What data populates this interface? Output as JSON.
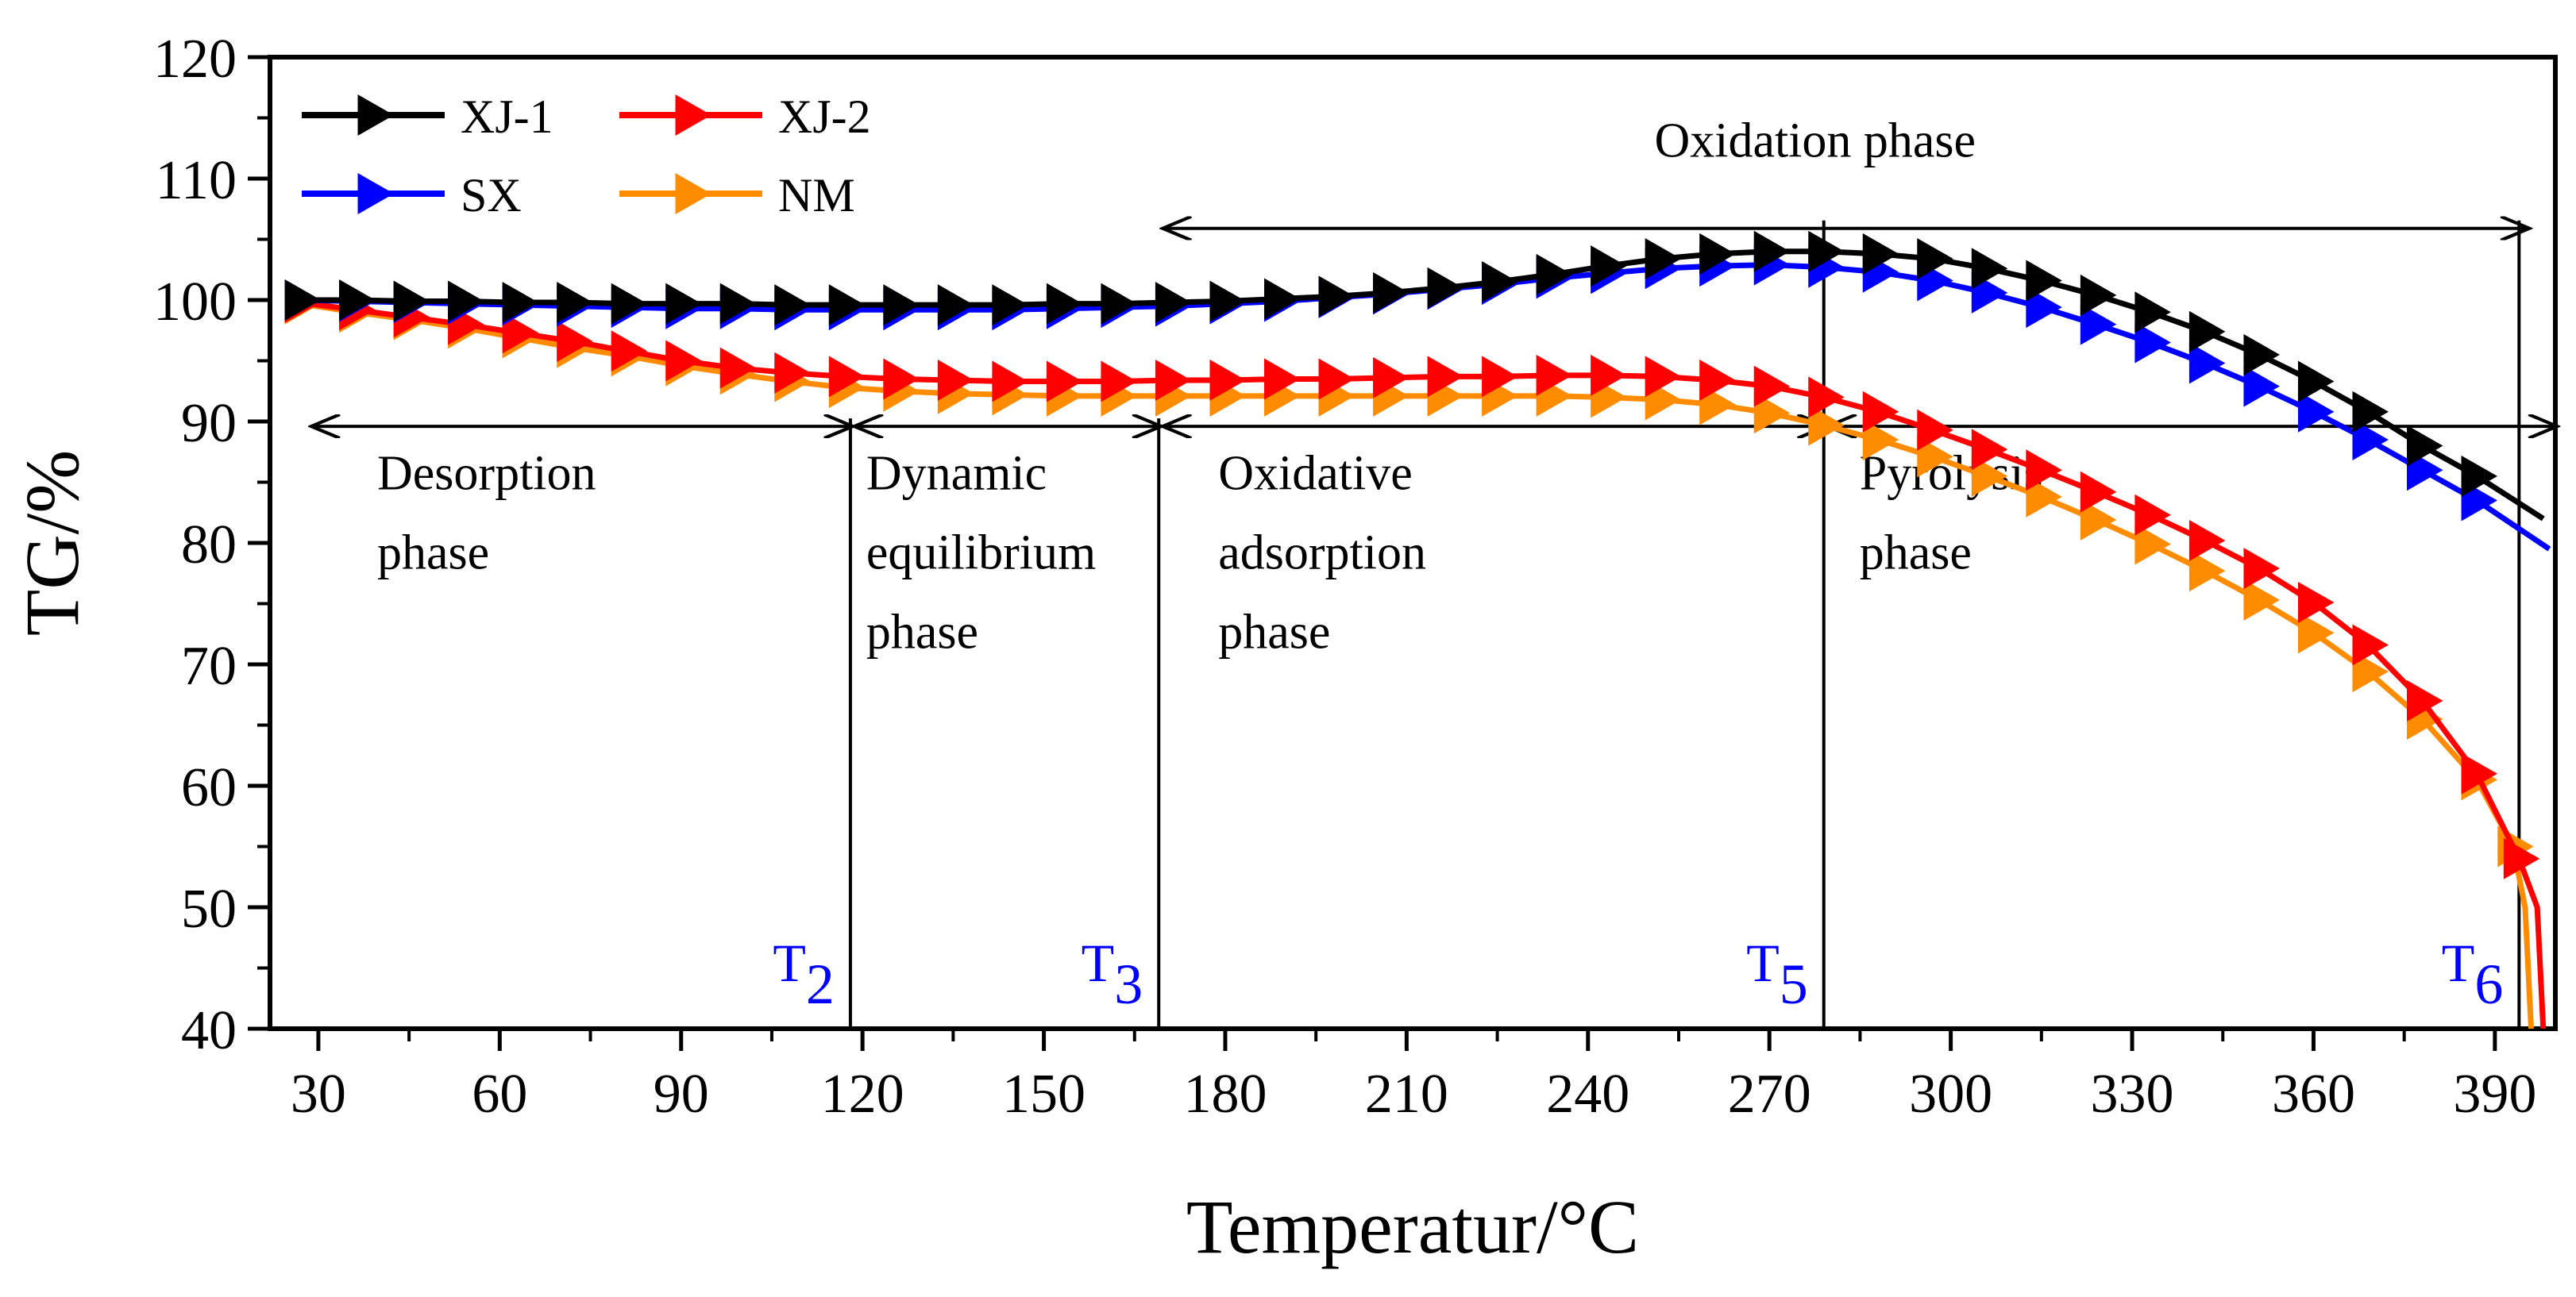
{
  "chart_data": {
    "type": "line",
    "xlabel": "Temperatur/°C",
    "ylabel": "TG/%",
    "xlim": [
      22,
      400
    ],
    "ylim": [
      40,
      120
    ],
    "xticks": [
      30,
      60,
      90,
      120,
      150,
      180,
      210,
      240,
      270,
      300,
      330,
      360,
      390
    ],
    "yticks": [
      40,
      50,
      60,
      70,
      80,
      90,
      100,
      110,
      120
    ],
    "grid": false,
    "legend_position": "top-left",
    "series": [
      {
        "name": "XJ-1",
        "color": "#000000",
        "x": [
          27,
          36,
          45,
          54,
          63,
          72,
          81,
          90,
          99,
          108,
          117,
          126,
          135,
          144,
          153,
          162,
          171,
          180,
          189,
          198,
          207,
          216,
          225,
          234,
          243,
          252,
          261,
          270,
          279,
          288,
          297,
          306,
          315,
          324,
          333,
          342,
          351,
          360,
          369,
          378,
          387,
          398
        ],
        "y": [
          100,
          100,
          99.9,
          99.9,
          99.8,
          99.8,
          99.7,
          99.7,
          99.7,
          99.6,
          99.6,
          99.6,
          99.6,
          99.6,
          99.7,
          99.7,
          99.8,
          99.9,
          100.1,
          100.3,
          100.6,
          101,
          101.5,
          102.1,
          102.8,
          103.4,
          103.8,
          104.0,
          104.0,
          103.8,
          103.4,
          102.6,
          101.6,
          100.4,
          99.0,
          97.4,
          95.5,
          93.3,
          90.8,
          88.0,
          85.5,
          82.0
        ]
      },
      {
        "name": "XJ-2",
        "color": "#ff0000",
        "x": [
          27,
          36,
          45,
          54,
          63,
          72,
          81,
          90,
          99,
          108,
          117,
          126,
          135,
          144,
          153,
          162,
          171,
          180,
          189,
          198,
          207,
          216,
          225,
          234,
          243,
          252,
          261,
          270,
          279,
          288,
          297,
          306,
          315,
          324,
          333,
          342,
          351,
          360,
          369,
          378,
          387,
          394,
          397,
          398
        ],
        "y": [
          99.8,
          99.2,
          98.6,
          98.0,
          97.3,
          96.6,
          95.8,
          95.0,
          94.4,
          94.0,
          93.7,
          93.5,
          93.4,
          93.3,
          93.3,
          93.3,
          93.4,
          93.4,
          93.5,
          93.5,
          93.6,
          93.7,
          93.7,
          93.8,
          93.8,
          93.7,
          93.4,
          92.9,
          92.0,
          90.8,
          89.3,
          87.7,
          86.0,
          84.2,
          82.3,
          80.2,
          77.9,
          75.1,
          71.6,
          67.0,
          61.0,
          54.0,
          50.0,
          40.0
        ]
      },
      {
        "name": "SX",
        "color": "#0000ff",
        "x": [
          27,
          36,
          45,
          54,
          63,
          72,
          81,
          90,
          99,
          108,
          117,
          126,
          135,
          144,
          153,
          162,
          171,
          180,
          189,
          198,
          207,
          216,
          225,
          234,
          243,
          252,
          261,
          270,
          279,
          288,
          297,
          306,
          315,
          324,
          333,
          342,
          351,
          360,
          369,
          378,
          387,
          399
        ],
        "y": [
          100,
          99.9,
          99.8,
          99.7,
          99.6,
          99.5,
          99.4,
          99.3,
          99.3,
          99.2,
          99.2,
          99.2,
          99.2,
          99.2,
          99.3,
          99.4,
          99.5,
          99.7,
          99.9,
          100.2,
          100.5,
          100.9,
          101.3,
          101.8,
          102.2,
          102.6,
          102.8,
          102.9,
          102.7,
          102.3,
          101.6,
          100.6,
          99.4,
          98.0,
          96.5,
          94.8,
          92.9,
          90.8,
          88.5,
          86.0,
          83.5,
          79.5
        ]
      },
      {
        "name": "NM",
        "color": "#ff8c00",
        "x": [
          27,
          36,
          45,
          54,
          63,
          72,
          81,
          90,
          99,
          108,
          117,
          126,
          135,
          144,
          153,
          162,
          171,
          180,
          189,
          198,
          207,
          216,
          225,
          234,
          243,
          252,
          261,
          270,
          279,
          288,
          297,
          306,
          315,
          324,
          333,
          342,
          351,
          360,
          369,
          378,
          387,
          393,
          395,
          396
        ],
        "y": [
          99.7,
          99.0,
          98.4,
          97.7,
          96.9,
          96.1,
          95.4,
          94.6,
          93.9,
          93.3,
          92.8,
          92.5,
          92.3,
          92.2,
          92.1,
          92.1,
          92.1,
          92.1,
          92.1,
          92.1,
          92.1,
          92.1,
          92.1,
          92.1,
          92.0,
          91.8,
          91.4,
          90.7,
          89.7,
          88.5,
          87.1,
          85.5,
          83.8,
          81.9,
          79.9,
          77.7,
          75.3,
          72.6,
          69.4,
          65.5,
          60.5,
          55.0,
          50.0,
          40.0
        ]
      }
    ],
    "annotations": {
      "top_phase": "Oxidation phase",
      "phases": [
        {
          "text": [
            "Desorption",
            "phase"
          ]
        },
        {
          "text": [
            "Dynamic",
            "equilibrium",
            "phase"
          ]
        },
        {
          "text": [
            "Oxidative",
            "adsorption",
            "phase"
          ]
        },
        {
          "text": [
            "Pyrolysis",
            "phase"
          ]
        }
      ],
      "boundaries": [
        {
          "x": 118,
          "label": "T",
          "sub": "2"
        },
        {
          "x": 169,
          "label": "T",
          "sub": "3"
        },
        {
          "x": 279,
          "label": "T",
          "sub": "5"
        },
        {
          "x": 394,
          "label": "T",
          "sub": "6"
        }
      ],
      "label_color": "#0000ff"
    }
  }
}
